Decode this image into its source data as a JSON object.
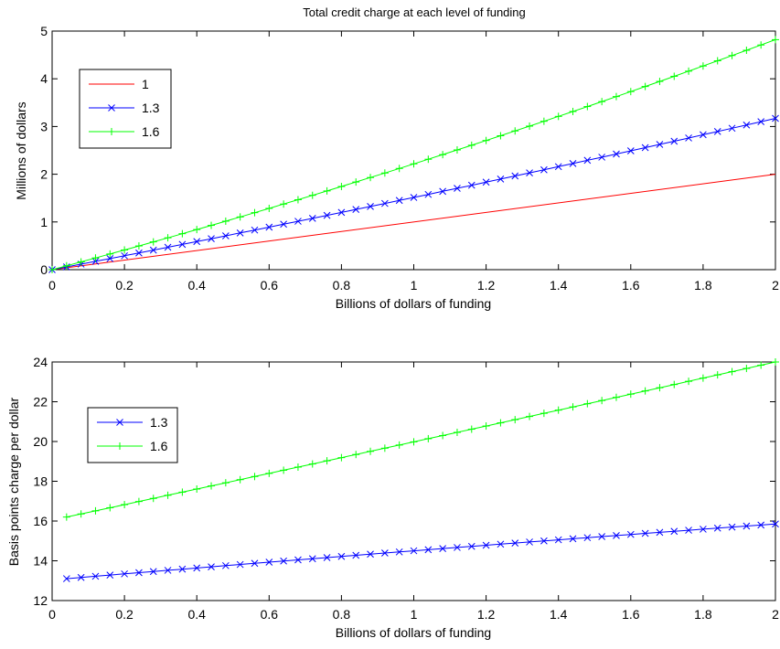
{
  "chart_data": [
    {
      "type": "line",
      "title": "Total credit charge at each level of funding",
      "xlabel": "Billions of dollars of funding",
      "ylabel": "Millions of dollars",
      "xlim": [
        0,
        2
      ],
      "ylim": [
        0,
        5
      ],
      "xticks": [
        0,
        0.2,
        0.4,
        0.6,
        0.8,
        1,
        1.2,
        1.4,
        1.6,
        1.8,
        2
      ],
      "xtick_labels": [
        "0",
        "0.2",
        "0.4",
        "0.6",
        "0.8",
        "1",
        "1.2",
        "1.4",
        "1.6",
        "1.8",
        "2"
      ],
      "yticks": [
        0,
        1,
        2,
        3,
        4,
        5
      ],
      "ytick_labels": [
        "0",
        "1",
        "2",
        "3",
        "4",
        "5"
      ],
      "grid": false,
      "legend_position": "top-left",
      "series": [
        {
          "name": "1",
          "color": "#ff0000",
          "marker": "none",
          "start": [
            0,
            0
          ],
          "end": [
            2,
            2.0
          ],
          "curve_factor": 0,
          "points": 2
        },
        {
          "name": "1.3",
          "color": "#0000ff",
          "marker": "x",
          "start": [
            0,
            0
          ],
          "end": [
            2,
            3.17
          ],
          "curve_factor": 0.09,
          "points": 51
        },
        {
          "name": "1.6",
          "color": "#00ff00",
          "marker": "+",
          "start": [
            0,
            0
          ],
          "end": [
            2,
            4.82
          ],
          "curve_factor": 0.16,
          "points": 51
        }
      ]
    },
    {
      "type": "line",
      "title": "",
      "xlabel": "Billions of dollars of funding",
      "ylabel": "Basis points charge per dollar",
      "xlim": [
        0,
        2
      ],
      "ylim": [
        12,
        24
      ],
      "xticks": [
        0,
        0.2,
        0.4,
        0.6,
        0.8,
        1,
        1.2,
        1.4,
        1.6,
        1.8,
        2
      ],
      "xtick_labels": [
        "0",
        "0.2",
        "0.4",
        "0.6",
        "0.8",
        "1",
        "1.2",
        "1.4",
        "1.6",
        "1.8",
        "2"
      ],
      "yticks": [
        12,
        14,
        16,
        18,
        20,
        22,
        24
      ],
      "ytick_labels": [
        "12",
        "14",
        "16",
        "18",
        "20",
        "22",
        "24"
      ],
      "grid": false,
      "legend_position": "top-left",
      "series": [
        {
          "name": "1.3",
          "color": "#0000ff",
          "marker": "x",
          "start": [
            0.04,
            13.1
          ],
          "end": [
            2,
            15.85
          ],
          "curve_factor": -0.08,
          "points": 50
        },
        {
          "name": "1.6",
          "color": "#00ff00",
          "marker": "+",
          "start": [
            0.04,
            16.2
          ],
          "end": [
            2,
            24.0
          ],
          "curve_factor": 0.02,
          "points": 50
        }
      ]
    }
  ]
}
